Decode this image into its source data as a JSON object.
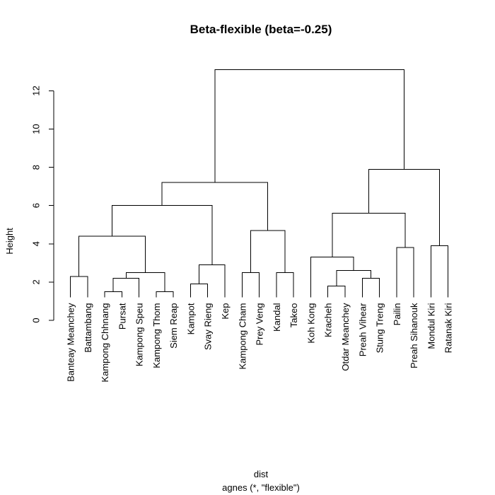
{
  "chart_data": {
    "type": "dendrogram",
    "title": "Beta-flexible (beta=-0.25)",
    "ylabel": "Height",
    "xlabel": "dist",
    "sublabel": "agnes (*, \"flexible\")",
    "ylim": [
      0,
      13
    ],
    "yticks": [
      0,
      2,
      4,
      6,
      8,
      10,
      12
    ],
    "leaves": [
      "Banteay Meanchey",
      "Battambang",
      "Kampong Chhnang",
      "Pursat",
      "Kampong Speu",
      "Kampong Thom",
      "Siem Reap",
      "Kampot",
      "Svay Rieng",
      "Kep",
      "Kampong Cham",
      "Prey Veng",
      "Kandal",
      "Takeo",
      "Koh Kong",
      "Kracheh",
      "Otdar Meanchey",
      "Preah Vihear",
      "Stung Treng",
      "Pailin",
      "Preah Sihanouk",
      "Mondul Kiri",
      "Ratanak Kiri"
    ],
    "leaf_height": 1.2,
    "merges": [
      {
        "id": "m1",
        "left": "Banteay Meanchey",
        "right": "Battambang",
        "height": 2.3
      },
      {
        "id": "m2",
        "left": "Kampong Chhnang",
        "right": "Pursat",
        "height": 1.5
      },
      {
        "id": "m3",
        "left": "m2",
        "right": "Kampong Speu",
        "height": 2.2
      },
      {
        "id": "m4",
        "left": "Kampong Thom",
        "right": "Siem Reap",
        "height": 1.5
      },
      {
        "id": "m5",
        "left": "m3",
        "right": "m4",
        "height": 2.5
      },
      {
        "id": "m6",
        "left": "m1",
        "right": "m5",
        "height": 4.4
      },
      {
        "id": "m7",
        "left": "Kampot",
        "right": "Svay Rieng",
        "height": 1.9
      },
      {
        "id": "m8",
        "left": "m7",
        "right": "Kep",
        "height": 2.9
      },
      {
        "id": "m9",
        "left": "m6",
        "right": "m8",
        "height": 6.0
      },
      {
        "id": "m10",
        "left": "Kampong Cham",
        "right": "Prey Veng",
        "height": 2.5
      },
      {
        "id": "m11",
        "left": "Kandal",
        "right": "Takeo",
        "height": 2.5
      },
      {
        "id": "m12",
        "left": "m10",
        "right": "m11",
        "height": 4.7
      },
      {
        "id": "m13",
        "left": "m9",
        "right": "m12",
        "height": 7.2
      },
      {
        "id": "m14",
        "left": "Kracheh",
        "right": "Otdar Meanchey",
        "height": 1.8
      },
      {
        "id": "m15",
        "left": "Preah Vihear",
        "right": "Stung Treng",
        "height": 2.2
      },
      {
        "id": "m16",
        "left": "m14",
        "right": "m15",
        "height": 2.6
      },
      {
        "id": "m17",
        "left": "Koh Kong",
        "right": "m16",
        "height": 3.3
      },
      {
        "id": "m18",
        "left": "Pailin",
        "right": "Preah Sihanouk",
        "height": 3.8
      },
      {
        "id": "m19",
        "left": "m17",
        "right": "m18",
        "height": 5.6
      },
      {
        "id": "m20",
        "left": "Mondul Kiri",
        "right": "Ratanak Kiri",
        "height": 3.9
      },
      {
        "id": "m21",
        "left": "m19",
        "right": "m20",
        "height": 7.9
      },
      {
        "id": "m22",
        "left": "m13",
        "right": "m21",
        "height": 13.1
      }
    ]
  }
}
